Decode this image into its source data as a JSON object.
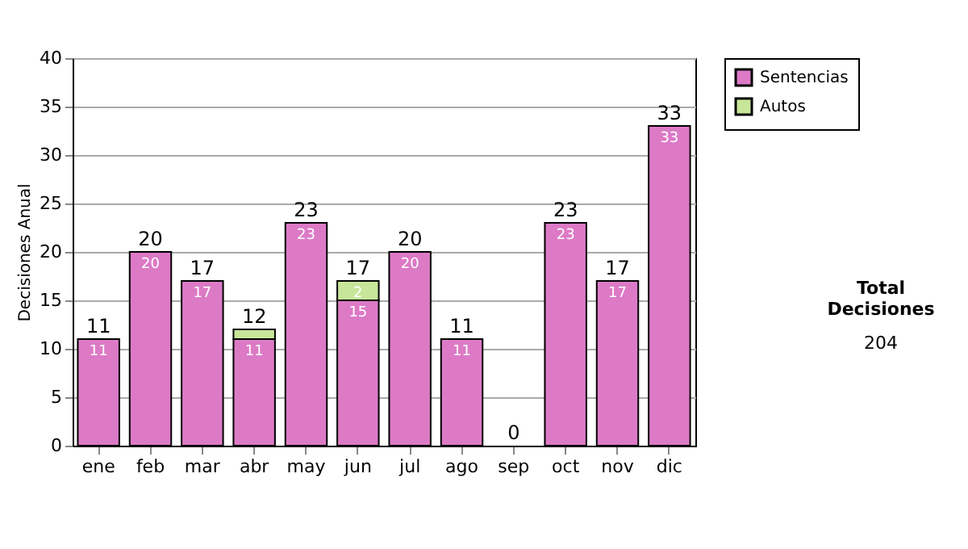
{
  "chart_data": {
    "type": "bar",
    "stacked": true,
    "ylabel": "Decisiones Anual",
    "categories": [
      "ene",
      "feb",
      "mar",
      "abr",
      "may",
      "jun",
      "jul",
      "ago",
      "sep",
      "oct",
      "nov",
      "dic"
    ],
    "series": [
      {
        "name": "Sentencias",
        "color": "#dc7ac6",
        "values": [
          11,
          20,
          17,
          11,
          23,
          15,
          20,
          11,
          0,
          23,
          17,
          33
        ],
        "value_labels": [
          "11",
          "20",
          "17",
          "11",
          "23",
          "15",
          "20",
          "11",
          null,
          "23",
          "17",
          "33"
        ]
      },
      {
        "name": "Autos",
        "color": "#c8e69a",
        "values": [
          0,
          0,
          0,
          1,
          0,
          2,
          0,
          0,
          0,
          0,
          0,
          0
        ],
        "value_labels": [
          null,
          null,
          null,
          null,
          null,
          "2",
          null,
          null,
          null,
          null,
          null,
          null
        ]
      }
    ],
    "totals": [
      "11",
      "20",
      "17",
      "12",
      "23",
      "17",
      "20",
      "11",
      "0",
      "23",
      "17",
      "33"
    ],
    "ylim": [
      0,
      40
    ],
    "yticks": [
      0,
      5,
      10,
      15,
      20,
      25,
      30,
      35,
      40
    ],
    "grid": "y",
    "legend": "right",
    "annotations": [
      "Total Decisiones",
      "204"
    ]
  }
}
